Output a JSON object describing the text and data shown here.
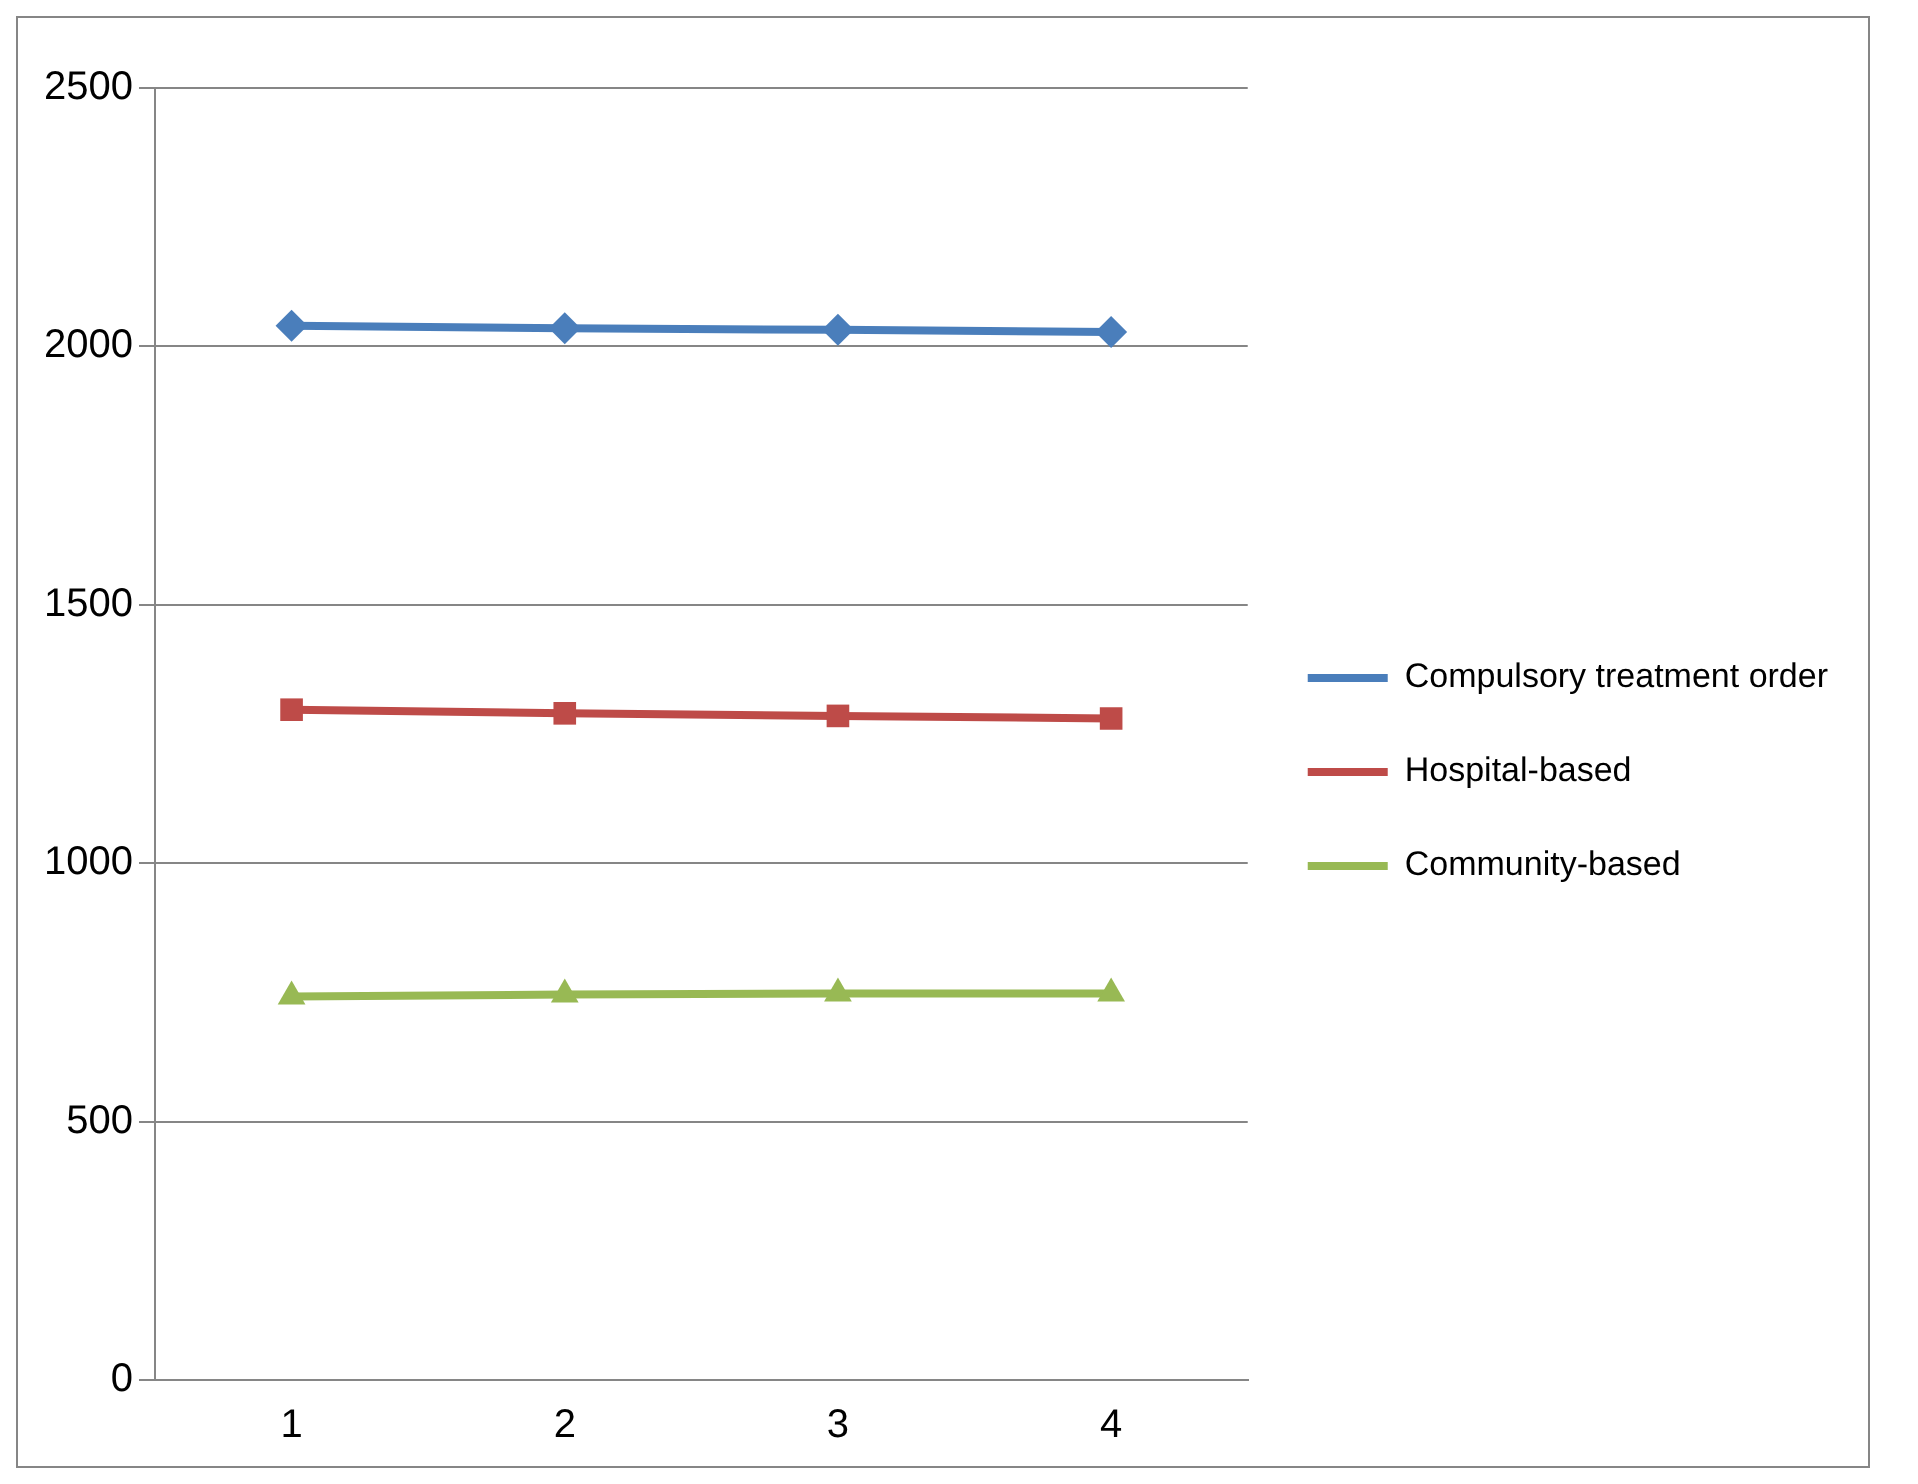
{
  "chart_data": {
    "type": "line",
    "categories": [
      "1",
      "2",
      "3",
      "4"
    ],
    "series": [
      {
        "name": "Compulsory treatment order",
        "color": "#4a7ebb",
        "marker": "diamond",
        "values": [
          2040,
          2035,
          2032,
          2028
        ]
      },
      {
        "name": "Hospital-based",
        "color": "#be4b48",
        "marker": "square",
        "values": [
          1297,
          1290,
          1285,
          1280
        ]
      },
      {
        "name": "Community-based",
        "color": "#98b954",
        "marker": "triangle",
        "values": [
          742,
          746,
          748,
          748
        ]
      }
    ],
    "ylim": [
      0,
      2500
    ],
    "yticks": [
      0,
      500,
      1000,
      1500,
      2000,
      2500
    ],
    "grid": "y",
    "legend": "right"
  }
}
